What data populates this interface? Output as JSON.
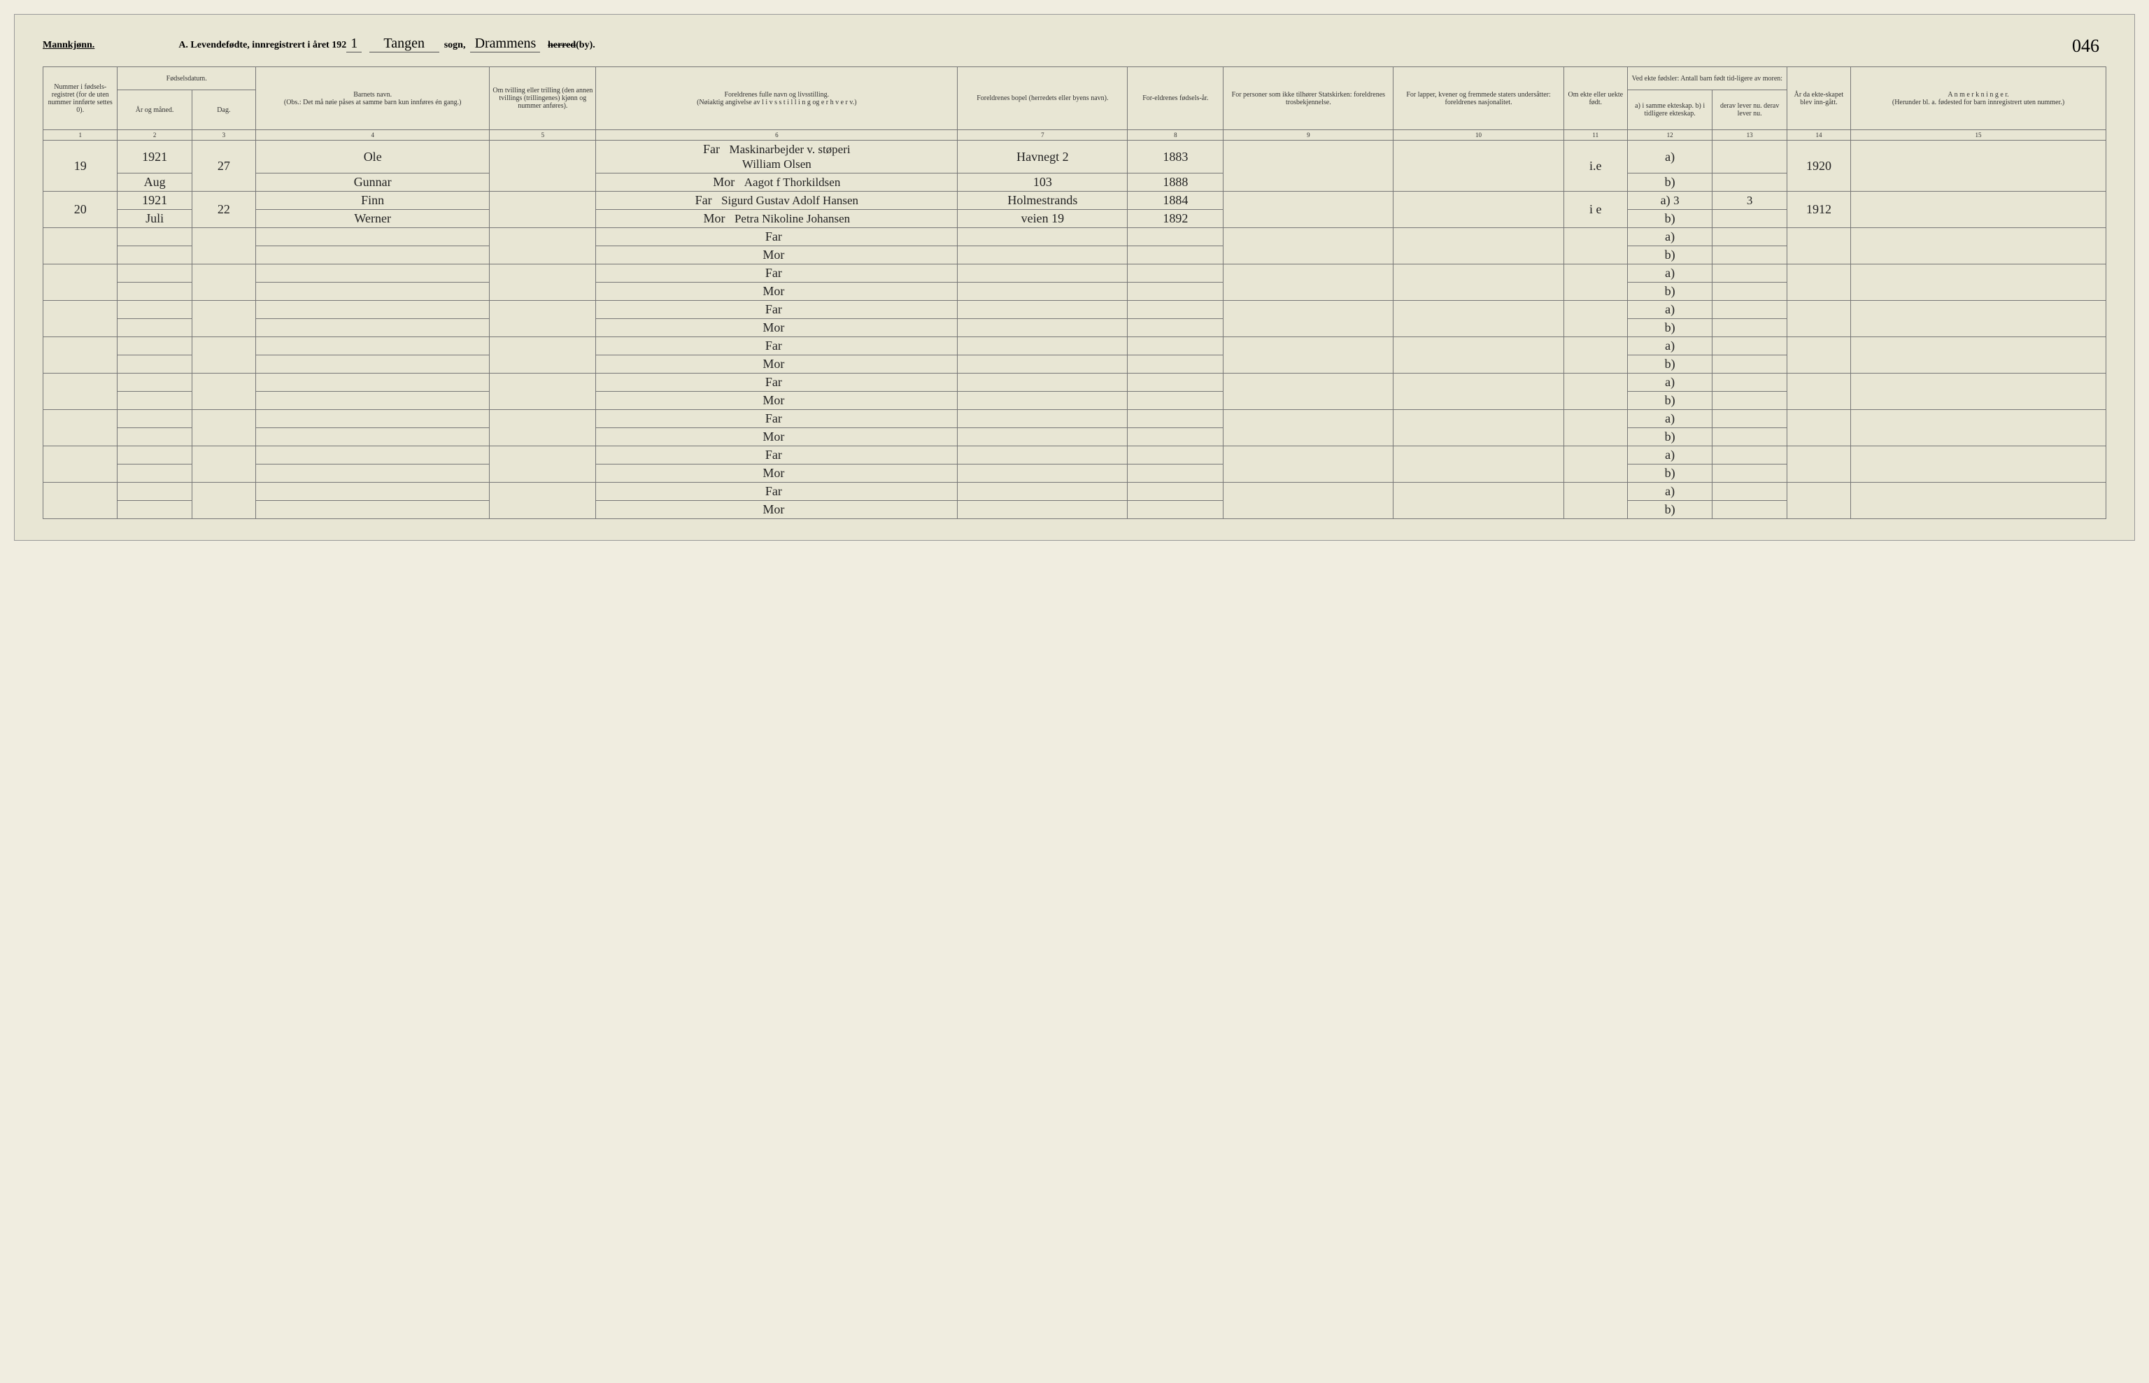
{
  "header": {
    "mannkjonn": "Mannkjønn.",
    "title_prefix": "A. Levendefødte, innregistrert i året 192",
    "year_suffix": "1",
    "sogn_field": "Tangen",
    "sogn_label": "sogn,",
    "herred_field": "Drammens",
    "herred_label_struck": "herred",
    "by_label": "(by).",
    "page_number": "046"
  },
  "columns": {
    "c1": "Nummer i fødsels-registret (for de uten nummer innførte settes 0).",
    "c2a": "Fødselsdatum.",
    "c2": "År og måned.",
    "c3": "Dag.",
    "c4": "Barnets navn.",
    "c4_note": "(Obs.: Det må nøie påses at samme barn kun innføres én gang.)",
    "c5": "Om tvilling eller trilling (den annen tvillings (trillingenes) kjønn og nummer anføres).",
    "c6": "Foreldrenes fulle navn og livsstilling.",
    "c6_note": "(Nøiaktig angivelse av  l i v s s t i l l i n g  og  e r h v e r v.)",
    "c7": "Foreldrenes bopel (herredets eller byens navn).",
    "c8": "For-eldrenes fødsels-år.",
    "c9": "For personer som ikke tilhører Statskirken: foreldrenes trosbekjennelse.",
    "c10": "For lapper, kvener og fremmede staters undersåtter: foreldrenes nasjonalitet.",
    "c11": "Om ekte eller uekte født.",
    "c12_top": "Ved ekte fødsler: Antall barn født tid-ligere av moren:",
    "c12": "a) i samme ekteskap. b) i tidligere ekteskap.",
    "c13": "derav lever nu. derav lever nu.",
    "c14": "År da ekte-skapet blev inn-gått.",
    "c15": "A n m e r k n i n g e r.",
    "c15_note": "(Herunder bl. a. fødested for barn innregistrert uten nummer.)",
    "far": "Far",
    "mor": "Mor",
    "a_label": "a)",
    "b_label": "b)"
  },
  "colnums": {
    "n1": "1",
    "n2": "2",
    "n3": "3",
    "n4": "4",
    "n5": "5",
    "n6": "6",
    "n7": "7",
    "n8": "8",
    "n9": "9",
    "n10": "10",
    "n11": "11",
    "n12": "12",
    "n13": "13",
    "n14": "14",
    "n15": "15"
  },
  "rows": [
    {
      "num": "19",
      "year": "1921",
      "month": "Aug",
      "day": "27",
      "child_l1": "Ole",
      "child_l2": "Gunnar",
      "far_job": "Maskinarbejder v. støperi",
      "far": "William Olsen",
      "mor": "Aagot f Thorkildsen",
      "bopel_far": "Havnegt 2",
      "bopel_mor": "103",
      "faar_far": "1883",
      "faar_mor": "1888",
      "ekte": "i.e",
      "a": "",
      "b": "",
      "a13": "",
      "b13": "",
      "aar14": "1920"
    },
    {
      "num": "20",
      "year": "1921",
      "month": "Juli",
      "day": "22",
      "child_l1": "Finn",
      "child_l2": "Werner",
      "far_job": "",
      "far": "Sigurd Gustav Adolf Hansen",
      "mor": "Petra Nikoline Johansen",
      "bopel_far": "Holmestrands",
      "bopel_mor": "veien 19",
      "faar_far": "1884",
      "faar_mor": "1892",
      "ekte": "i e",
      "a": "3",
      "b": "",
      "a13": "3",
      "b13": "",
      "aar14": "1912"
    }
  ]
}
